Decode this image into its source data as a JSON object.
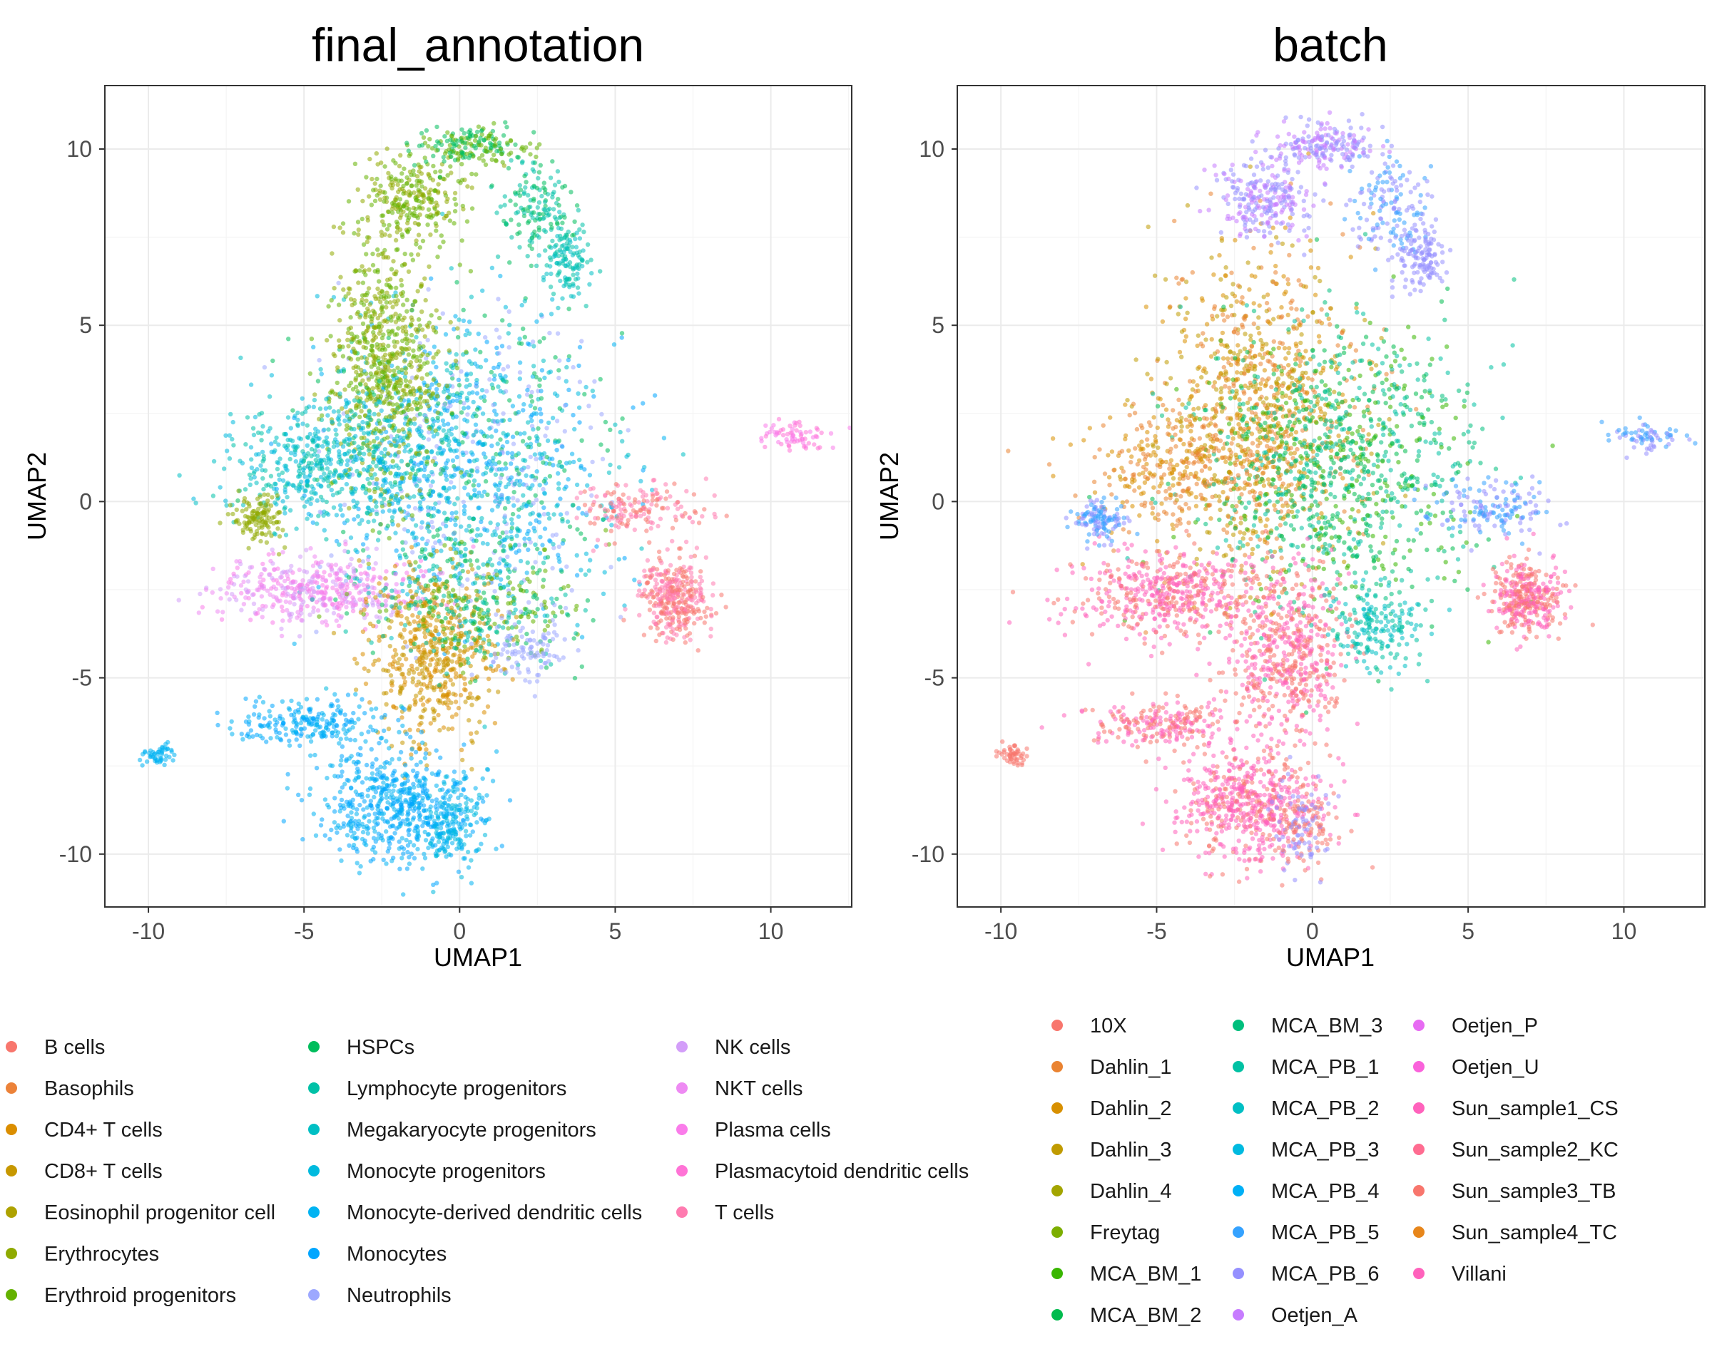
{
  "chart_data": [
    {
      "type": "scatter",
      "title": "final_annotation",
      "xlabel": "UMAP1",
      "ylabel": "UMAP2",
      "xlim": [
        -11.4,
        12.6
      ],
      "ylim": [
        -11.5,
        11.8
      ],
      "xticks": [
        -10,
        -5,
        0,
        5,
        10
      ],
      "yticks": [
        -10,
        -5,
        0,
        5,
        10
      ],
      "grid": true,
      "legend_position": "bottom",
      "legend_title": "",
      "series": [
        {
          "name": "B cells",
          "color": "#F8766D"
        },
        {
          "name": "Basophils",
          "color": "#EC8239"
        },
        {
          "name": "CD4+ T cells",
          "color": "#DB8E00"
        },
        {
          "name": "CD8+ T cells",
          "color": "#C79800"
        },
        {
          "name": "Eosinophil progenitor cell",
          "color": "#AEA200"
        },
        {
          "name": "Erythrocytes",
          "color": "#8FAA00"
        },
        {
          "name": "Erythroid progenitors",
          "color": "#64B200"
        },
        {
          "name": "HSPCs",
          "color": "#00BD5C"
        },
        {
          "name": "Lymphocyte progenitors",
          "color": "#00C1A7"
        },
        {
          "name": "Megakaryocyte progenitors",
          "color": "#00BFC4"
        },
        {
          "name": "Monocyte progenitors",
          "color": "#00BADE"
        },
        {
          "name": "Monocyte-derived dendritic cells",
          "color": "#00B3F2"
        },
        {
          "name": "Monocytes",
          "color": "#00A6FF"
        },
        {
          "name": "Neutrophils",
          "color": "#9DA8FF"
        },
        {
          "name": "NK cells",
          "color": "#D39EF9"
        },
        {
          "name": "NKT cells",
          "color": "#EE8AF3"
        },
        {
          "name": "Plasma cells",
          "color": "#FA7CEA"
        },
        {
          "name": "Plasmacytoid dendritic cells",
          "color": "#FF73D6"
        },
        {
          "name": "T cells",
          "color": "#FF7BB0"
        }
      ],
      "clusters": [
        {
          "cx": 0.2,
          "cy": 1.0,
          "sx": 2.3,
          "sy": 2.2,
          "n": 1400,
          "series": [
            12,
            13,
            9,
            7,
            11,
            10
          ]
        },
        {
          "cx": -2.4,
          "cy": 4.0,
          "sx": 0.9,
          "sy": 1.8,
          "n": 700,
          "series": [
            5,
            6
          ]
        },
        {
          "cx": -4.3,
          "cy": 1.0,
          "sx": 1.6,
          "sy": 0.9,
          "n": 500,
          "series": [
            9,
            8,
            10
          ]
        },
        {
          "cx": -4.6,
          "cy": -2.5,
          "sx": 1.6,
          "sy": 0.5,
          "n": 450,
          "series": [
            14,
            15,
            16
          ]
        },
        {
          "cx": -6.5,
          "cy": -0.5,
          "sx": 0.4,
          "sy": 0.3,
          "n": 120,
          "series": [
            5
          ]
        },
        {
          "cx": -0.8,
          "cy": -4.3,
          "sx": 1.0,
          "sy": 1.2,
          "n": 550,
          "series": [
            2,
            3
          ]
        },
        {
          "cx": 0.6,
          "cy": -3.0,
          "sx": 1.8,
          "sy": 0.9,
          "n": 350,
          "series": [
            7,
            6,
            8
          ]
        },
        {
          "cx": 6.9,
          "cy": -2.7,
          "sx": 0.55,
          "sy": 0.55,
          "n": 350,
          "series": [
            0,
            18
          ]
        },
        {
          "cx": 5.8,
          "cy": -0.2,
          "sx": 1.0,
          "sy": 0.4,
          "n": 160,
          "series": [
            0,
            18
          ]
        },
        {
          "cx": -4.8,
          "cy": -6.3,
          "sx": 1.3,
          "sy": 0.35,
          "n": 220,
          "series": [
            12,
            11
          ]
        },
        {
          "cx": -9.7,
          "cy": -7.2,
          "sx": 0.25,
          "sy": 0.15,
          "n": 50,
          "series": [
            11
          ]
        },
        {
          "cx": -2.0,
          "cy": -8.6,
          "sx": 1.2,
          "sy": 0.8,
          "n": 600,
          "series": [
            12,
            11
          ]
        },
        {
          "cx": -0.3,
          "cy": -9.2,
          "sx": 0.5,
          "sy": 0.6,
          "n": 150,
          "series": [
            10,
            11
          ]
        },
        {
          "cx": 10.8,
          "cy": 1.8,
          "sx": 0.6,
          "sy": 0.2,
          "n": 70,
          "series": [
            17,
            16
          ]
        },
        {
          "cx": 2.3,
          "cy": -4.2,
          "sx": 0.6,
          "sy": 0.5,
          "n": 100,
          "series": [
            13
          ]
        },
        {
          "cx": -1.5,
          "cy": 8.6,
          "sx": 0.8,
          "sy": 0.6,
          "n": 250,
          "series": [
            6,
            5
          ]
        },
        {
          "cx": 0.5,
          "cy": 10.1,
          "sx": 0.9,
          "sy": 0.3,
          "n": 180,
          "series": [
            6,
            7
          ]
        },
        {
          "cx": 2.5,
          "cy": 8.3,
          "sx": 0.6,
          "sy": 0.7,
          "n": 150,
          "series": [
            7,
            8
          ]
        },
        {
          "cx": 3.5,
          "cy": 6.8,
          "sx": 0.4,
          "sy": 0.5,
          "n": 120,
          "series": [
            8,
            9
          ]
        }
      ]
    },
    {
      "type": "scatter",
      "title": "batch",
      "xlabel": "UMAP1",
      "ylabel": "UMAP2",
      "xlim": [
        -11.4,
        12.6
      ],
      "ylim": [
        -11.5,
        11.8
      ],
      "xticks": [
        -10,
        -5,
        0,
        5,
        10
      ],
      "yticks": [
        -10,
        -5,
        0,
        5,
        10
      ],
      "grid": true,
      "legend_position": "bottom",
      "legend_title": "",
      "series": [
        {
          "name": "10X",
          "color": "#F8766D"
        },
        {
          "name": "Dahlin_1",
          "color": "#EA8331"
        },
        {
          "name": "Dahlin_2",
          "color": "#D89000"
        },
        {
          "name": "Dahlin_3",
          "color": "#C09B00"
        },
        {
          "name": "Dahlin_4",
          "color": "#A3A500"
        },
        {
          "name": "Freytag",
          "color": "#7CAE00"
        },
        {
          "name": "MCA_BM_1",
          "color": "#39B600"
        },
        {
          "name": "MCA_BM_2",
          "color": "#00BB4E"
        },
        {
          "name": "MCA_BM_3",
          "color": "#00BF7D"
        },
        {
          "name": "MCA_PB_1",
          "color": "#00C1A3"
        },
        {
          "name": "MCA_PB_2",
          "color": "#00BFC4"
        },
        {
          "name": "MCA_PB_3",
          "color": "#00BAE0"
        },
        {
          "name": "MCA_PB_4",
          "color": "#00B0F6"
        },
        {
          "name": "MCA_PB_5",
          "color": "#35A2FF"
        },
        {
          "name": "MCA_PB_6",
          "color": "#9590FF"
        },
        {
          "name": "Oetjen_A",
          "color": "#C77CFF"
        },
        {
          "name": "Oetjen_P",
          "color": "#E76BF3"
        },
        {
          "name": "Oetjen_U",
          "color": "#FA62DB"
        },
        {
          "name": "Sun_sample1_CS",
          "color": "#FF62BC"
        },
        {
          "name": "Sun_sample2_KC",
          "color": "#FF6C91"
        },
        {
          "name": "Sun_sample3_TB",
          "color": "#F8766D"
        },
        {
          "name": "Sun_sample4_TC",
          "color": "#E7861B"
        },
        {
          "name": "Villani",
          "color": "#FF62BC"
        }
      ],
      "clusters": [
        {
          "cx": -1.6,
          "cy": 2.6,
          "sx": 1.6,
          "sy": 2.3,
          "n": 1000,
          "series": [
            1,
            2,
            3
          ]
        },
        {
          "cx": 0.8,
          "cy": 1.0,
          "sx": 2.2,
          "sy": 2.1,
          "n": 1000,
          "series": [
            7,
            6,
            8,
            9
          ]
        },
        {
          "cx": -4.5,
          "cy": 0.8,
          "sx": 1.4,
          "sy": 0.8,
          "n": 300,
          "series": [
            1,
            2
          ]
        },
        {
          "cx": -4.6,
          "cy": -2.6,
          "sx": 1.6,
          "sy": 0.6,
          "n": 500,
          "series": [
            0,
            18,
            22
          ]
        },
        {
          "cx": -6.8,
          "cy": -0.6,
          "sx": 0.4,
          "sy": 0.3,
          "n": 120,
          "series": [
            14,
            13
          ]
        },
        {
          "cx": -0.8,
          "cy": -4.3,
          "sx": 1.0,
          "sy": 1.2,
          "n": 550,
          "series": [
            0,
            22
          ]
        },
        {
          "cx": 2.2,
          "cy": -3.6,
          "sx": 0.7,
          "sy": 0.6,
          "n": 180,
          "series": [
            9,
            10
          ]
        },
        {
          "cx": 6.9,
          "cy": -2.7,
          "sx": 0.55,
          "sy": 0.55,
          "n": 350,
          "series": [
            0,
            22
          ]
        },
        {
          "cx": 5.8,
          "cy": -0.2,
          "sx": 1.0,
          "sy": 0.4,
          "n": 150,
          "series": [
            13,
            14
          ]
        },
        {
          "cx": -4.8,
          "cy": -6.3,
          "sx": 1.3,
          "sy": 0.35,
          "n": 220,
          "series": [
            0,
            22
          ]
        },
        {
          "cx": -9.7,
          "cy": -7.2,
          "sx": 0.25,
          "sy": 0.15,
          "n": 50,
          "series": [
            0
          ]
        },
        {
          "cx": -2.0,
          "cy": -8.6,
          "sx": 1.2,
          "sy": 0.8,
          "n": 600,
          "series": [
            0,
            22,
            18
          ]
        },
        {
          "cx": -0.3,
          "cy": -9.2,
          "sx": 0.5,
          "sy": 0.6,
          "n": 150,
          "series": [
            14,
            0
          ]
        },
        {
          "cx": 10.8,
          "cy": 1.8,
          "sx": 0.6,
          "sy": 0.2,
          "n": 70,
          "series": [
            14,
            13
          ]
        },
        {
          "cx": -1.5,
          "cy": 8.6,
          "sx": 0.8,
          "sy": 0.6,
          "n": 250,
          "series": [
            14,
            15
          ]
        },
        {
          "cx": 0.5,
          "cy": 10.1,
          "sx": 0.9,
          "sy": 0.3,
          "n": 180,
          "series": [
            14,
            15
          ]
        },
        {
          "cx": 2.5,
          "cy": 8.3,
          "sx": 0.6,
          "sy": 0.7,
          "n": 150,
          "series": [
            14,
            13
          ]
        },
        {
          "cx": 3.5,
          "cy": 6.8,
          "sx": 0.4,
          "sy": 0.5,
          "n": 120,
          "series": [
            14
          ]
        }
      ]
    }
  ]
}
